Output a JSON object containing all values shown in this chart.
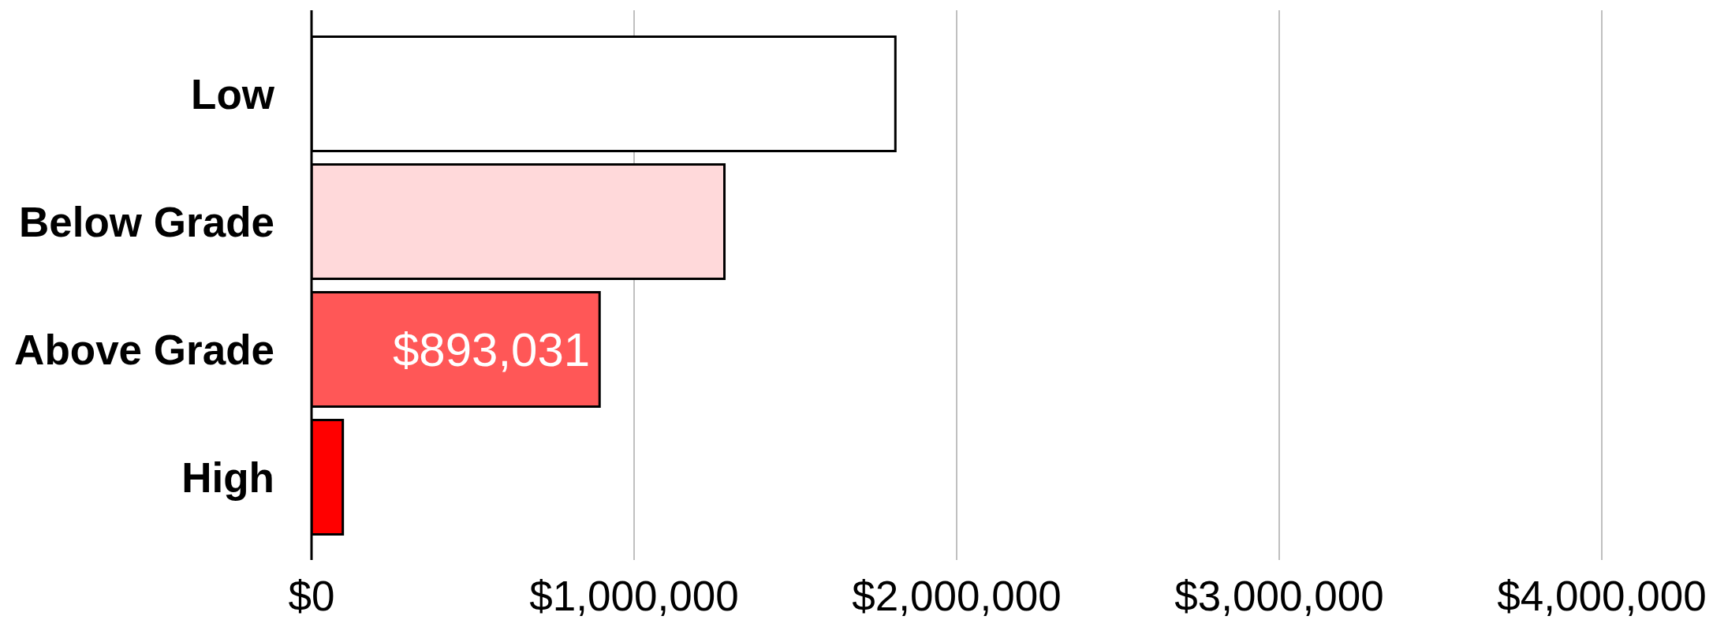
{
  "chart_data": {
    "type": "bar",
    "orientation": "horizontal",
    "categories": [
      "Low",
      "Below Grade",
      "Above Grade",
      "High"
    ],
    "values": [
      1810000,
      1280000,
      893031,
      97000
    ],
    "colors": [
      "#ffffff",
      "#ffd9da",
      "#ff5757",
      "#ff0000"
    ],
    "value_labels": [
      null,
      null,
      "$893,031",
      null
    ],
    "xlim": [
      0,
      4000000
    ],
    "xticks": [
      {
        "value": 0,
        "label": "$0"
      },
      {
        "value": 1000000,
        "label": "$1,000,000"
      },
      {
        "value": 2000000,
        "label": "$2,000,000"
      },
      {
        "value": 3000000,
        "label": "$3,000,000"
      },
      {
        "value": 4000000,
        "label": "$4,000,000"
      }
    ],
    "grid": "x"
  }
}
